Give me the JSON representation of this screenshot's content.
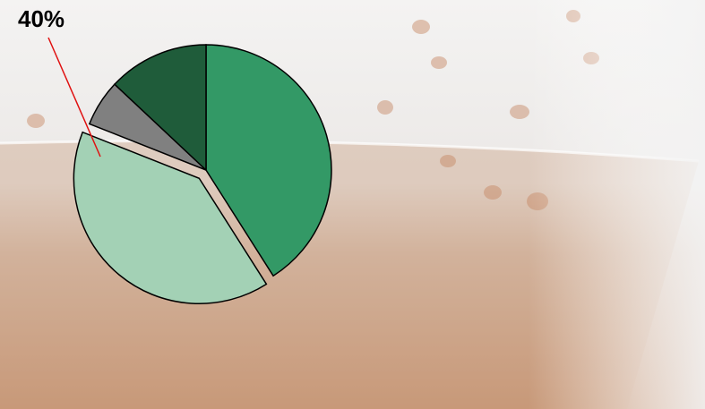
{
  "chart_data": {
    "type": "pie",
    "values": [
      41,
      40,
      6,
      13
    ],
    "value_labels": [
      null,
      "40%",
      null,
      null
    ],
    "colors": [
      "#339966",
      "#a3d1b5",
      "#808080",
      "#1f5c3a"
    ],
    "exploded": [
      false,
      true,
      false,
      false
    ]
  }
}
